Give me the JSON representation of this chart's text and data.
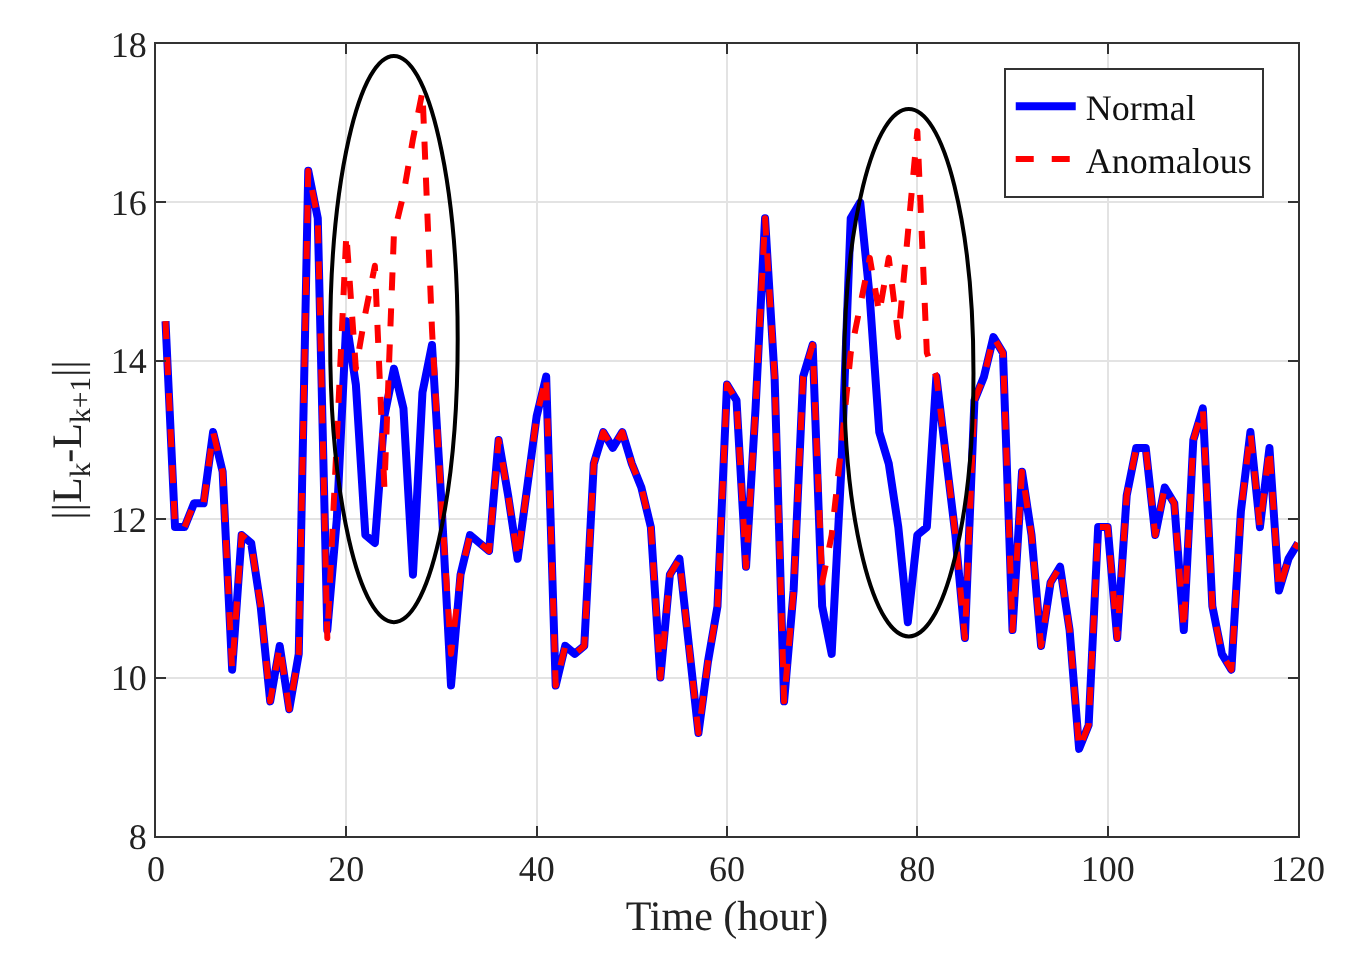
{
  "chart_data": {
    "type": "line",
    "xlabel": "Time (hour)",
    "ylabel": "||L$_{k}$-L$_{k+1}$||",
    "x": [
      1,
      2,
      3,
      4,
      5,
      6,
      7,
      8,
      9,
      10,
      11,
      12,
      13,
      14,
      15,
      16,
      17,
      18,
      19,
      20,
      21,
      22,
      23,
      24,
      25,
      26,
      27,
      28,
      29,
      30,
      31,
      32,
      33,
      34,
      35,
      36,
      37,
      38,
      39,
      40,
      41,
      42,
      43,
      44,
      45,
      46,
      47,
      48,
      49,
      50,
      51,
      52,
      53,
      54,
      55,
      56,
      57,
      58,
      59,
      60,
      61,
      62,
      63,
      64,
      65,
      66,
      67,
      68,
      69,
      70,
      71,
      72,
      73,
      74,
      75,
      76,
      77,
      78,
      79,
      80,
      81,
      82,
      83,
      84,
      85,
      86,
      87,
      88,
      89,
      90,
      91,
      92,
      93,
      94,
      95,
      96,
      97,
      98,
      99,
      100,
      101,
      102,
      103,
      104,
      105,
      106,
      107,
      108,
      109,
      110,
      111,
      112,
      113,
      114,
      115,
      116,
      117,
      118,
      119,
      120
    ],
    "series": [
      {
        "name": "Normal",
        "color": "#0000ff",
        "line_style": "solid",
        "values": [
          14.5,
          11.9,
          11.9,
          12.2,
          12.2,
          13.1,
          12.6,
          10.1,
          11.8,
          11.7,
          10.9,
          9.7,
          10.4,
          9.6,
          10.3,
          16.4,
          15.8,
          10.6,
          12.0,
          14.5,
          13.7,
          11.8,
          11.7,
          13.3,
          13.9,
          13.4,
          11.3,
          13.6,
          14.2,
          12.2,
          9.9,
          11.3,
          11.8,
          11.7,
          11.6,
          13.0,
          12.3,
          11.5,
          12.4,
          13.3,
          13.8,
          9.9,
          10.4,
          10.3,
          10.4,
          12.7,
          13.1,
          12.9,
          13.1,
          12.7,
          12.4,
          11.9,
          10.0,
          11.3,
          11.5,
          10.4,
          9.3,
          10.2,
          10.9,
          13.7,
          13.5,
          11.4,
          13.4,
          15.8,
          13.8,
          9.7,
          11.1,
          13.8,
          14.2,
          10.9,
          10.3,
          12.6,
          15.8,
          16.0,
          14.8,
          13.1,
          12.7,
          11.9,
          10.7,
          11.8,
          11.9,
          13.8,
          12.8,
          11.8,
          10.5,
          13.5,
          13.8,
          14.3,
          14.1,
          10.6,
          12.6,
          11.8,
          10.4,
          11.2,
          11.4,
          10.6,
          9.1,
          9.4,
          11.9,
          11.9,
          10.5,
          12.3,
          12.9,
          12.9,
          11.8,
          12.4,
          12.2,
          10.6,
          13.0,
          13.4,
          10.9,
          10.3,
          10.1,
          12.1,
          13.1,
          11.9,
          12.9,
          11.1,
          11.5,
          11.7
        ]
      },
      {
        "name": "Anomalous",
        "color": "#ff0000",
        "line_style": "dashed",
        "values": [
          14.5,
          11.9,
          11.9,
          12.2,
          12.2,
          13.1,
          12.6,
          10.1,
          11.8,
          11.7,
          10.9,
          9.7,
          10.4,
          9.6,
          10.3,
          16.4,
          15.8,
          10.5,
          13.0,
          15.6,
          13.9,
          14.6,
          15.2,
          12.4,
          15.6,
          16.1,
          16.8,
          17.4,
          14.4,
          12.2,
          10.3,
          11.3,
          11.8,
          11.7,
          11.6,
          13.0,
          12.3,
          11.5,
          12.4,
          13.3,
          13.8,
          9.9,
          10.4,
          10.3,
          10.4,
          12.7,
          13.1,
          12.9,
          13.1,
          12.7,
          12.4,
          11.9,
          10.0,
          11.3,
          11.5,
          10.4,
          9.3,
          10.2,
          10.9,
          13.7,
          13.5,
          11.4,
          13.4,
          15.8,
          13.8,
          9.7,
          11.1,
          13.8,
          14.2,
          11.2,
          11.8,
          12.9,
          14.1,
          14.7,
          15.3,
          14.6,
          15.3,
          14.3,
          15.6,
          16.9,
          14.1,
          13.8,
          12.8,
          11.8,
          10.5,
          13.5,
          13.8,
          14.3,
          14.1,
          10.6,
          12.6,
          11.8,
          10.4,
          11.2,
          11.4,
          10.6,
          9.1,
          9.4,
          11.9,
          11.9,
          10.5,
          12.3,
          12.9,
          12.9,
          11.8,
          12.4,
          12.2,
          10.6,
          13.0,
          13.4,
          10.9,
          10.3,
          10.1,
          12.1,
          13.1,
          11.9,
          12.9,
          11.1,
          11.5,
          11.7
        ]
      }
    ],
    "xlim": [
      0,
      120
    ],
    "xticks": [
      0,
      20,
      40,
      60,
      80,
      100,
      120
    ],
    "ylim": [
      8,
      18
    ],
    "yticks": [
      8,
      10,
      12,
      14,
      16,
      18
    ],
    "grid": true,
    "legend": "top right",
    "marker": "none"
  }
}
